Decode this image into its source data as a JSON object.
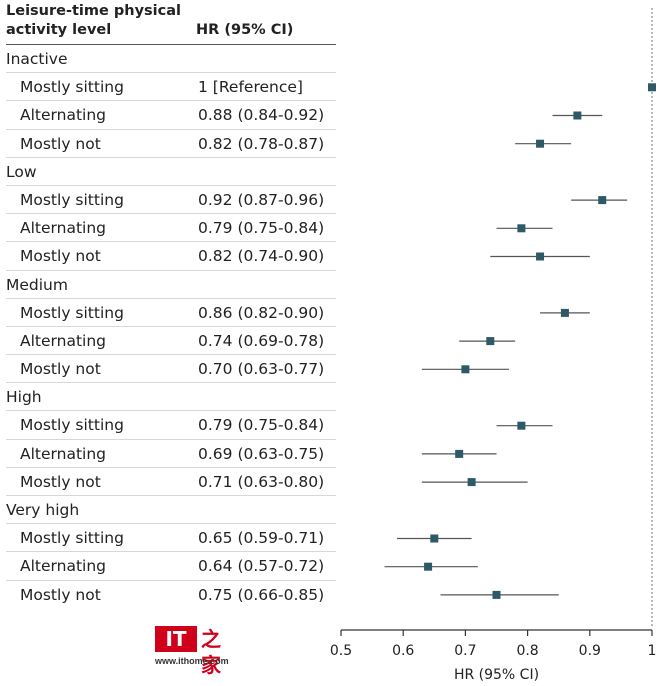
{
  "header": {
    "col1": "Leisure-time physical activity level",
    "col2": "HR (95% CI)"
  },
  "chart_data": {
    "type": "forest",
    "xlabel": "HR (95% CI)",
    "xlim": [
      0.5,
      1.0
    ],
    "xticks": [
      "0.5",
      "0.6",
      "0.7",
      "0.8",
      "0.9",
      "1"
    ],
    "reference_line": 1.0,
    "rows": [
      {
        "label": "Inactive",
        "group": true
      },
      {
        "label": "Mostly sitting",
        "hr_text": "1 [Reference]",
        "est": 1.0,
        "lo": 1.0,
        "hi": 1.0
      },
      {
        "label": "Alternating",
        "hr_text": "0.88 (0.84-0.92)",
        "est": 0.88,
        "lo": 0.84,
        "hi": 0.92
      },
      {
        "label": "Mostly not",
        "hr_text": "0.82 (0.78-0.87)",
        "est": 0.82,
        "lo": 0.78,
        "hi": 0.87
      },
      {
        "label": "Low",
        "group": true
      },
      {
        "label": "Mostly sitting",
        "hr_text": "0.92 (0.87-0.96)",
        "est": 0.92,
        "lo": 0.87,
        "hi": 0.96
      },
      {
        "label": "Alternating",
        "hr_text": "0.79 (0.75-0.84)",
        "est": 0.79,
        "lo": 0.75,
        "hi": 0.84
      },
      {
        "label": "Mostly not",
        "hr_text": "0.82 (0.74-0.90)",
        "est": 0.82,
        "lo": 0.74,
        "hi": 0.9
      },
      {
        "label": "Medium",
        "group": true
      },
      {
        "label": "Mostly sitting",
        "hr_text": "0.86 (0.82-0.90)",
        "est": 0.86,
        "lo": 0.82,
        "hi": 0.9
      },
      {
        "label": "Alternating",
        "hr_text": "0.74 (0.69-0.78)",
        "est": 0.74,
        "lo": 0.69,
        "hi": 0.78
      },
      {
        "label": "Mostly not",
        "hr_text": "0.70 (0.63-0.77)",
        "est": 0.7,
        "lo": 0.63,
        "hi": 0.77
      },
      {
        "label": "High",
        "group": true
      },
      {
        "label": "Mostly sitting",
        "hr_text": "0.79 (0.75-0.84)",
        "est": 0.79,
        "lo": 0.75,
        "hi": 0.84
      },
      {
        "label": "Alternating",
        "hr_text": "0.69 (0.63-0.75)",
        "est": 0.69,
        "lo": 0.63,
        "hi": 0.75
      },
      {
        "label": "Mostly not",
        "hr_text": "0.71 (0.63-0.80)",
        "est": 0.71,
        "lo": 0.63,
        "hi": 0.8
      },
      {
        "label": "Very high",
        "group": true
      },
      {
        "label": "Mostly sitting",
        "hr_text": "0.65 (0.59-0.71)",
        "est": 0.65,
        "lo": 0.59,
        "hi": 0.71
      },
      {
        "label": "Alternating",
        "hr_text": "0.64 (0.57-0.72)",
        "est": 0.64,
        "lo": 0.57,
        "hi": 0.72
      },
      {
        "label": "Mostly not",
        "hr_text": "0.75 (0.66-0.85)",
        "est": 0.75,
        "lo": 0.66,
        "hi": 0.85
      }
    ]
  },
  "colors": {
    "marker": "#2e5a67",
    "ci_line": "#555555",
    "axis": "#333333",
    "ref_line": "#777777"
  },
  "watermark": {
    "mark": "IT",
    "cn": "之家",
    "url": "www.ithome.com"
  }
}
